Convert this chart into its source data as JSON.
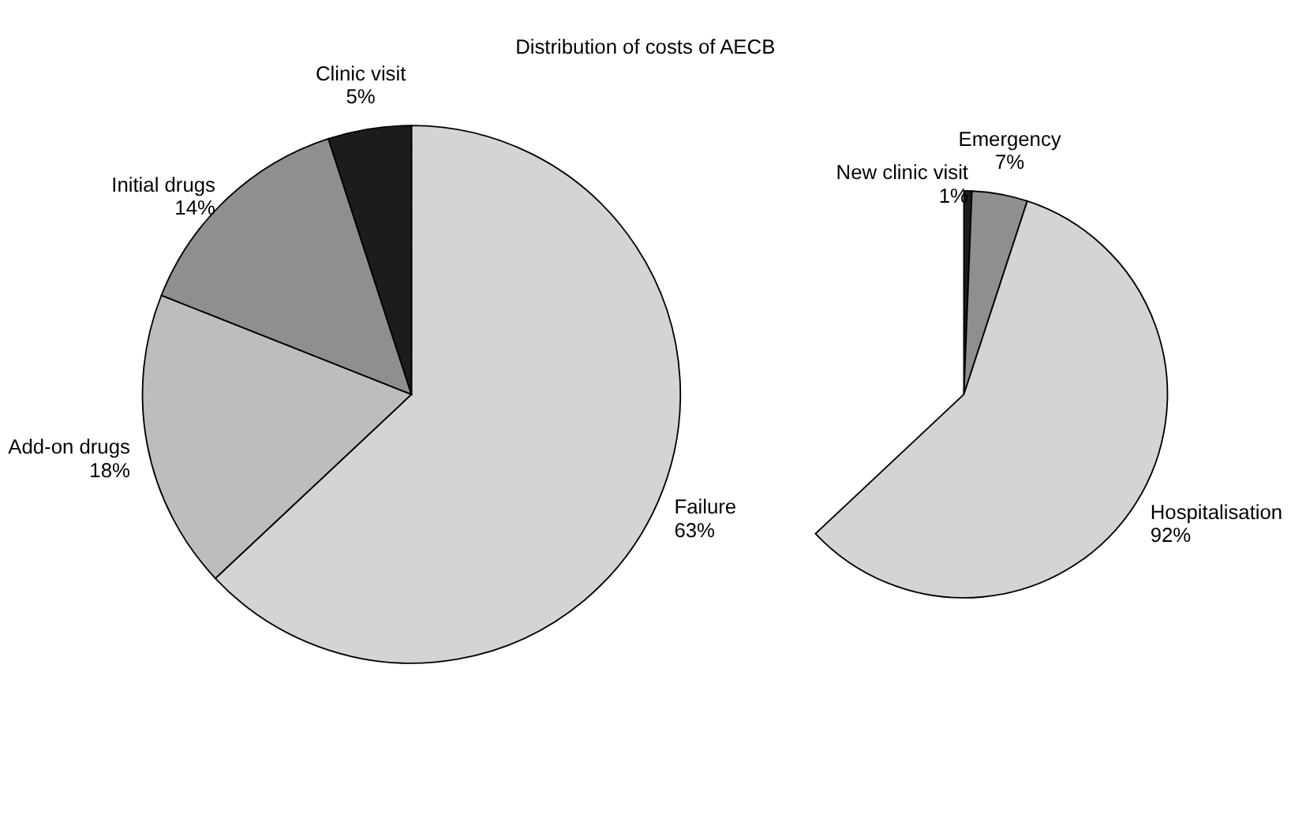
{
  "chart_data": [
    {
      "type": "pie",
      "title": "Distribution of costs of AECB",
      "categories": [
        "Failure",
        "Add-on drugs",
        "Initial drugs",
        "Clinic visit"
      ],
      "values": [
        63,
        18,
        14,
        5
      ],
      "value_labels": [
        "63%",
        "18%",
        "14%",
        "5%"
      ],
      "colors": [
        "#d4d4d4",
        "#bdbdbd",
        "#8f8f8f",
        "#1c1c1c"
      ]
    },
    {
      "type": "pie",
      "categories": [
        "New clinic visit",
        "Emergency",
        "Hospitalisation"
      ],
      "values": [
        1,
        7,
        92
      ],
      "value_labels": [
        "1%",
        "7%",
        "92%"
      ],
      "colors": [
        "#1c1c1c",
        "#8f8f8f",
        "#d4d4d4"
      ]
    }
  ]
}
